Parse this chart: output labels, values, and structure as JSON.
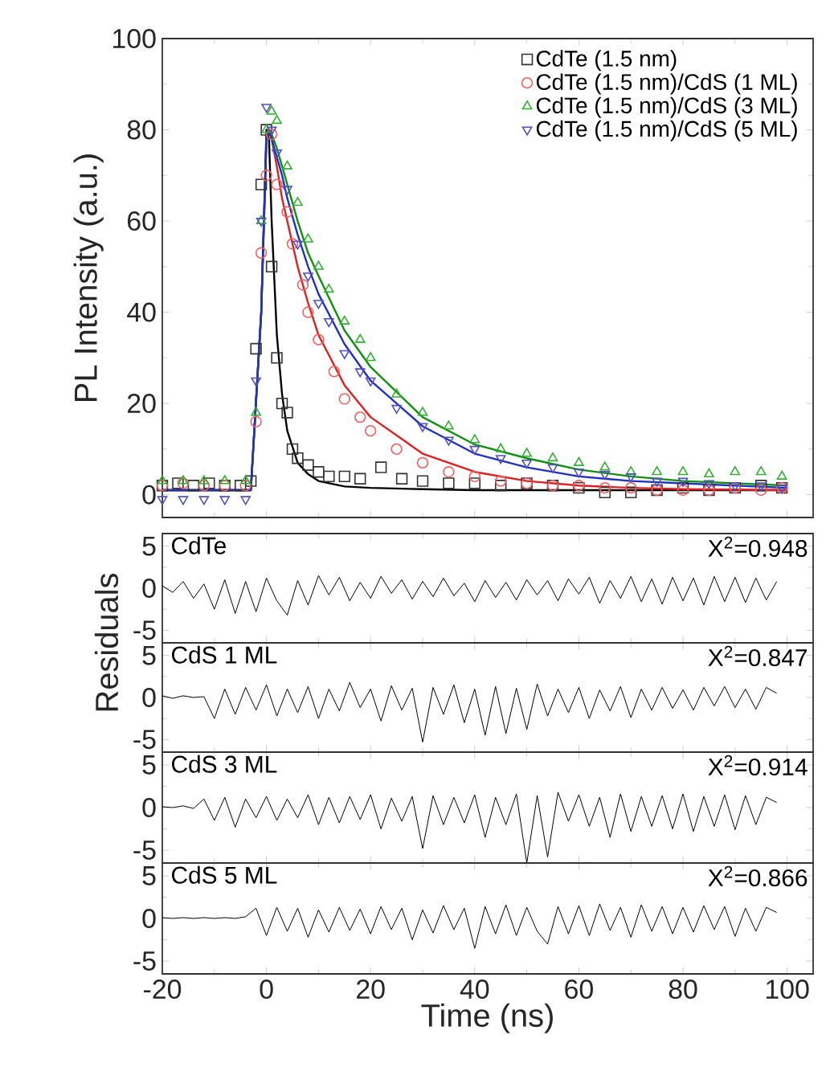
{
  "chart_data": [
    {
      "type": "scatter",
      "ylabel": "PL Intensity (a.u.)",
      "xlim": [
        -20,
        105
      ],
      "ylim": [
        -5,
        100
      ],
      "xticks": [
        -20,
        0,
        20,
        40,
        60,
        80,
        100
      ],
      "yticks": [
        0,
        20,
        40,
        60,
        80,
        100
      ],
      "tick_labels": "y",
      "legend": "top right",
      "series": [
        {
          "name": "CdTe (1.5 nm)",
          "color": "#333333",
          "marker": "square",
          "x": [
            -20,
            -17,
            -14,
            -11,
            -8,
            -5,
            -3,
            -2,
            -1,
            0,
            1,
            2,
            3,
            4,
            5,
            6,
            8,
            10,
            12,
            15,
            18,
            22,
            26,
            30,
            35,
            40,
            45,
            50,
            55,
            60,
            65,
            70,
            75,
            80,
            85,
            90,
            95,
            99
          ],
          "values": [
            2,
            2.5,
            2,
            2.5,
            2,
            2,
            3,
            32,
            68,
            80,
            50,
            30,
            20,
            18,
            10,
            8,
            6.5,
            5,
            4,
            4,
            3.5,
            6,
            3.5,
            3,
            2.5,
            2.5,
            2,
            2.5,
            2,
            1.5,
            0.5,
            0.5,
            1,
            1.5,
            1,
            1.5,
            2,
            1.5
          ]
        },
        {
          "name": "CdTe (1.5 nm)/CdS (1 ML)",
          "color": "#f06060",
          "marker": "circle",
          "x": [
            -20,
            -16,
            -12,
            -8,
            -4,
            -2,
            -1,
            0,
            1,
            2,
            4,
            5,
            7,
            8,
            10,
            13,
            15,
            18,
            20,
            25,
            30,
            35,
            40,
            45,
            50,
            55,
            60,
            65,
            70,
            75,
            80,
            85,
            90,
            95,
            99
          ],
          "values": [
            2,
            2.5,
            2,
            2,
            2,
            16,
            53,
            70,
            79,
            68,
            62,
            55,
            46,
            40,
            34,
            27,
            21,
            17,
            14,
            10,
            7,
            5,
            4,
            3,
            2.5,
            2,
            2,
            1.5,
            1.5,
            1,
            1,
            1,
            1.5,
            1,
            1.5
          ]
        },
        {
          "name": "CdTe (1.5 nm)/CdS (3 ML)",
          "color": "#30b030",
          "marker": "triangle",
          "x": [
            -20,
            -16,
            -12,
            -8,
            -4,
            -2,
            -1,
            0,
            1,
            2,
            4,
            6,
            8,
            10,
            12,
            15,
            18,
            20,
            25,
            30,
            35,
            40,
            45,
            50,
            55,
            60,
            65,
            70,
            75,
            80,
            85,
            90,
            95,
            99
          ],
          "values": [
            3,
            3,
            3,
            3,
            3,
            18,
            60,
            80,
            84,
            82,
            72,
            64,
            56,
            50,
            45,
            38,
            34,
            30,
            22,
            18,
            15,
            12,
            10,
            9,
            8,
            7,
            6,
            5,
            5,
            5,
            4.5,
            5,
            5,
            4
          ]
        },
        {
          "name": "CdTe (1.5 nm)/CdS (5 ML)",
          "color": "#5050c0",
          "marker": "triangle-down",
          "x": [
            -20,
            -16,
            -12,
            -8,
            -4,
            -2,
            -1,
            0,
            1,
            2,
            4,
            6,
            8,
            10,
            12,
            15,
            18,
            20,
            25,
            30,
            35,
            40,
            45,
            50,
            55,
            60,
            65,
            70,
            75,
            80,
            85,
            90,
            95,
            99
          ],
          "values": [
            -1,
            -1,
            -1,
            -1,
            -1,
            25,
            60,
            85,
            80,
            75,
            67,
            55,
            48,
            42,
            38,
            31,
            27,
            25,
            19,
            15,
            12,
            10,
            8,
            7,
            6,
            5,
            4.5,
            4,
            3,
            3,
            2.5,
            2,
            2,
            1.5
          ]
        },
        {
          "type": "line",
          "color": "#000000",
          "x": [
            -20,
            -3,
            -1,
            0,
            0.5,
            1,
            2,
            3,
            4,
            6,
            8,
            10,
            15,
            20,
            30,
            40,
            50,
            60,
            70,
            80,
            100
          ],
          "values": [
            1,
            1,
            40,
            80,
            78,
            60,
            35,
            22,
            14,
            7,
            4.5,
            3,
            1.8,
            1.5,
            1.2,
            1,
            1,
            1,
            1,
            1,
            1
          ]
        },
        {
          "type": "line",
          "color": "#e02020",
          "x": [
            -20,
            -3,
            -1,
            0,
            0.5,
            1,
            2,
            3,
            4,
            6,
            8,
            10,
            15,
            20,
            30,
            40,
            50,
            60,
            70,
            80,
            100
          ],
          "values": [
            1,
            1,
            40,
            78,
            80,
            78,
            72,
            65,
            60,
            50,
            42,
            35,
            24,
            17,
            9,
            5,
            3,
            2,
            1.5,
            1.2,
            1
          ]
        },
        {
          "type": "line",
          "color": "#109010",
          "x": [
            -20,
            -3,
            -1,
            0,
            0.5,
            1,
            2,
            3,
            4,
            6,
            8,
            10,
            15,
            20,
            30,
            40,
            50,
            60,
            70,
            80,
            100
          ],
          "values": [
            1,
            1,
            40,
            78,
            80,
            79,
            76,
            72,
            68,
            60,
            53,
            48,
            36,
            28,
            17,
            11,
            8,
            5.5,
            4,
            3,
            2
          ]
        },
        {
          "type": "line",
          "color": "#2030c0",
          "x": [
            -20,
            -3,
            -1,
            0,
            0.5,
            1,
            2,
            3,
            4,
            6,
            8,
            10,
            15,
            20,
            30,
            40,
            50,
            60,
            70,
            80,
            100
          ],
          "values": [
            1,
            1,
            40,
            78,
            80,
            78,
            74,
            70,
            65,
            57,
            50,
            44,
            33,
            25,
            15,
            9,
            6,
            4,
            3,
            2.5,
            1.5
          ]
        }
      ]
    },
    {
      "type": "line",
      "xlim": [
        -20,
        105
      ],
      "ylim": [
        -6.5,
        6.5
      ],
      "xticks": [
        -20,
        0,
        20,
        40,
        60,
        80,
        100
      ],
      "yticks": [
        -5,
        0,
        5
      ],
      "tick_labels": "y",
      "annotations": [
        "CdTe",
        "X$^{2}$=0.948"
      ],
      "x": [
        -20,
        -18,
        -16,
        -14,
        -12,
        -10,
        -8,
        -6,
        -4,
        -2,
        0,
        2,
        4,
        6,
        8,
        10,
        12,
        14,
        16,
        18,
        20,
        22,
        24,
        26,
        28,
        30,
        32,
        34,
        36,
        38,
        40,
        42,
        44,
        46,
        48,
        50,
        52,
        54,
        56,
        58,
        60,
        62,
        64,
        66,
        68,
        70,
        72,
        74,
        76,
        78,
        80,
        82,
        84,
        86,
        88,
        90,
        92,
        94,
        96,
        98
      ],
      "series": [
        {
          "color": "#000000",
          "values": [
            0.3,
            -0.5,
            0.8,
            -1.2,
            0.5,
            -2.5,
            1,
            -3,
            0.8,
            -2.8,
            1.2,
            -1.5,
            -3.2,
            0.9,
            -2,
            1.5,
            -0.8,
            1.3,
            -1.5,
            0.7,
            -1.2,
            1.4,
            -0.6,
            1,
            -1.3,
            0.8,
            -1,
            1.2,
            -0.9,
            0.6,
            -1.6,
            0.9,
            -1.1,
            0.7,
            -1.4,
            1,
            -0.8,
            0.9,
            -1.5,
            1.1,
            -0.7,
            1.3,
            -1.8,
            0.9,
            -1.2,
            1.4,
            -1.6,
            1.1,
            -1.9,
            1.3,
            -1.5,
            1.2,
            -2,
            1.4,
            -1.6,
            1.3,
            -1.7,
            1.2,
            -1.4,
            0.8
          ]
        }
      ]
    },
    {
      "type": "line",
      "ylabel": "Residuals",
      "xlim": [
        -20,
        105
      ],
      "ylim": [
        -6.5,
        6.5
      ],
      "xticks": [
        -20,
        0,
        20,
        40,
        60,
        80,
        100
      ],
      "yticks": [
        -5,
        0,
        5
      ],
      "tick_labels": "y",
      "annotations": [
        "CdS 1 ML",
        "X$^{2}$=0.847"
      ],
      "x": [
        -20,
        -18,
        -16,
        -14,
        -12,
        -10,
        -8,
        -6,
        -4,
        -2,
        0,
        2,
        4,
        6,
        8,
        10,
        12,
        14,
        16,
        18,
        20,
        22,
        24,
        26,
        28,
        30,
        32,
        34,
        36,
        38,
        40,
        42,
        44,
        46,
        48,
        50,
        52,
        54,
        56,
        58,
        60,
        62,
        64,
        66,
        68,
        70,
        72,
        74,
        76,
        78,
        80,
        82,
        84,
        86,
        88,
        90,
        92,
        94,
        96,
        98
      ],
      "series": [
        {
          "color": "#000000",
          "values": [
            0.2,
            -0.1,
            0.2,
            0,
            0.1,
            -2.5,
            1,
            -2,
            1.2,
            -1.5,
            1.5,
            -2.2,
            1,
            -1.8,
            1.3,
            -2.5,
            1,
            -1.6,
            1.8,
            -1.2,
            1,
            -2.8,
            1.4,
            -1.5,
            1.1,
            -5.3,
            1.2,
            -2,
            1.5,
            -3,
            1,
            -4.5,
            1.3,
            -4.3,
            1.1,
            -3.8,
            1.6,
            -2.2,
            1,
            -1.8,
            1.2,
            -2.5,
            0.9,
            -1.6,
            1.3,
            -2.4,
            1,
            -1.5,
            1.2,
            -1.3,
            0.9,
            -1.5,
            1.2,
            -1,
            1.3,
            -1.2,
            1,
            -1.4,
            1.2,
            0.5
          ]
        }
      ]
    },
    {
      "type": "line",
      "xlim": [
        -20,
        105
      ],
      "ylim": [
        -6.5,
        6.5
      ],
      "xticks": [
        -20,
        0,
        20,
        40,
        60,
        80,
        100
      ],
      "yticks": [
        -5,
        0,
        5
      ],
      "tick_labels": "y",
      "annotations": [
        "CdS 3 ML",
        "X$^{2}$=0.914"
      ],
      "x": [
        -20,
        -18,
        -16,
        -14,
        -12,
        -10,
        -8,
        -6,
        -4,
        -2,
        0,
        2,
        4,
        6,
        8,
        10,
        12,
        14,
        16,
        18,
        20,
        22,
        24,
        26,
        28,
        30,
        32,
        34,
        36,
        38,
        40,
        42,
        44,
        46,
        48,
        50,
        52,
        54,
        56,
        58,
        60,
        62,
        64,
        66,
        68,
        70,
        72,
        74,
        76,
        78,
        80,
        82,
        84,
        86,
        88,
        90,
        92,
        94,
        96,
        98
      ],
      "series": [
        {
          "color": "#000000",
          "values": [
            0.1,
            0,
            0.2,
            -0.1,
            1,
            -1.5,
            1.2,
            -2.3,
            1,
            -1.2,
            1.3,
            -1.5,
            1,
            -1.2,
            1.5,
            -2,
            1.2,
            -1.8,
            1.3,
            -1.4,
            1.5,
            -2.5,
            1.1,
            -1.6,
            1.3,
            -4.8,
            1.4,
            -2,
            1.2,
            -1.8,
            1.5,
            -3.5,
            1.2,
            -2,
            1.6,
            -6.5,
            1.4,
            -5.8,
            1.8,
            -1.6,
            1.5,
            -2.2,
            1.2,
            -3.5,
            1.6,
            -2.8,
            1.3,
            -2.2,
            1.4,
            -2.5,
            1.6,
            -2.8,
            1.3,
            -2.2,
            1.5,
            -2.6,
            1.4,
            -2,
            1.2,
            0.6
          ]
        }
      ]
    },
    {
      "type": "line",
      "xlabel": "Time (ns)",
      "xlim": [
        -20,
        105
      ],
      "ylim": [
        -6.5,
        6.5
      ],
      "xticks": [
        -20,
        0,
        20,
        40,
        60,
        80,
        100
      ],
      "yticks": [
        -5,
        0,
        5
      ],
      "annotations": [
        "CdS 5 ML",
        "X$^{2}$=0.866"
      ],
      "x": [
        -20,
        -18,
        -16,
        -14,
        -12,
        -10,
        -8,
        -6,
        -4,
        -2,
        0,
        2,
        4,
        6,
        8,
        10,
        12,
        14,
        16,
        18,
        20,
        22,
        24,
        26,
        28,
        30,
        32,
        34,
        36,
        38,
        40,
        42,
        44,
        46,
        48,
        50,
        52,
        54,
        56,
        58,
        60,
        62,
        64,
        66,
        68,
        70,
        72,
        74,
        76,
        78,
        80,
        82,
        84,
        86,
        88,
        90,
        92,
        94,
        96,
        98
      ],
      "series": [
        {
          "color": "#000000",
          "values": [
            0.1,
            0,
            0.1,
            0,
            0.1,
            0,
            0.1,
            0,
            0.2,
            1.2,
            -2,
            1.3,
            -1.5,
            1.2,
            -2.2,
            1,
            -1.6,
            1.3,
            -1.4,
            1.1,
            -1.8,
            1.4,
            -1.3,
            1.2,
            -2.5,
            1,
            -1.7,
            1.5,
            -1.3,
            1.2,
            -3.5,
            1.4,
            -1.8,
            1.6,
            -2,
            1.3,
            -1.5,
            -3,
            1.4,
            -1.8,
            1.5,
            -2,
            1.7,
            -1.4,
            1.3,
            -2.2,
            1.6,
            -1.5,
            1.4,
            -1.8,
            1.3,
            -1.6,
            1.5,
            -1.3,
            1.4,
            -2.1,
            1.2,
            -1.5,
            1.3,
            0.7
          ]
        }
      ]
    }
  ]
}
